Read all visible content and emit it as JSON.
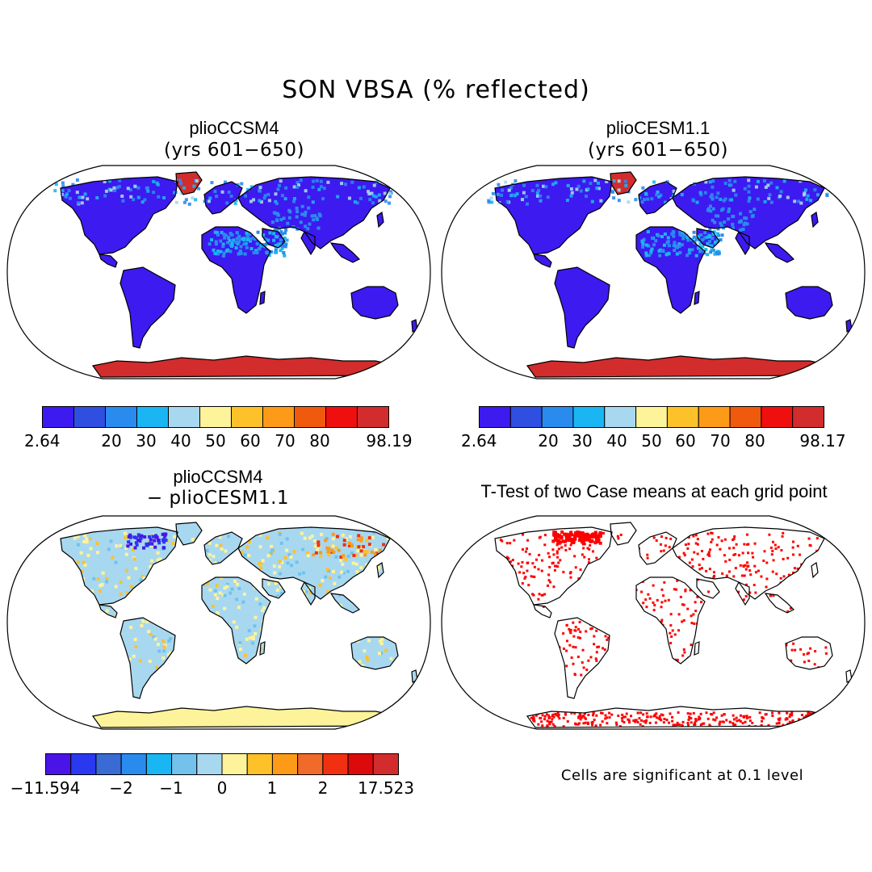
{
  "figure": {
    "title": "SON VBSA (% reflected)"
  },
  "panels": [
    {
      "id": "case1",
      "title": "plioCCSM4",
      "subtitle": "(yrs 601−650)",
      "colorbar": {
        "colors": [
          "#3d1aef",
          "#2e4fe0",
          "#2a8bef",
          "#1ab6f4",
          "#a8d8f0",
          "#fdf39a",
          "#fdc12a",
          "#fd9a18",
          "#f05a0c",
          "#f00f0f",
          "#d22c2c"
        ],
        "tick_labels": [
          "2.64",
          "20",
          "30",
          "40",
          "50",
          "60",
          "70",
          "80",
          "98.19"
        ]
      }
    },
    {
      "id": "case2",
      "title": "plioCESM1.1",
      "subtitle": "(yrs 601−650)",
      "colorbar": {
        "colors": [
          "#3d1aef",
          "#2e4fe0",
          "#2a8bef",
          "#1ab6f4",
          "#a8d8f0",
          "#fdf39a",
          "#fdc12a",
          "#fd9a18",
          "#f05a0c",
          "#f00f0f",
          "#d22c2c"
        ],
        "tick_labels": [
          "2.64",
          "20",
          "30",
          "40",
          "50",
          "60",
          "70",
          "80",
          "98.17"
        ]
      }
    },
    {
      "id": "diff",
      "title": "plioCCSM4",
      "subtitle": "− plioCESM1.1",
      "colorbar": {
        "colors": [
          "#4a14e8",
          "#2a38f0",
          "#3a6ad4",
          "#2a8bef",
          "#1ab6f4",
          "#72c2ec",
          "#a8d8f0",
          "#fdf39a",
          "#fdc12a",
          "#fd9a18",
          "#f06a2a",
          "#f03010",
          "#dc0a0a",
          "#d22c2c"
        ],
        "tick_labels": [
          "−11.594",
          "−2",
          "−1",
          "0",
          "1",
          "2",
          "17.523"
        ]
      }
    },
    {
      "id": "ttest",
      "title": "T-Test of two Case means at each grid point",
      "subtitle": "",
      "significance_color": "#ff0000"
    }
  ],
  "note": "Cells are significant at 0.1 level"
}
